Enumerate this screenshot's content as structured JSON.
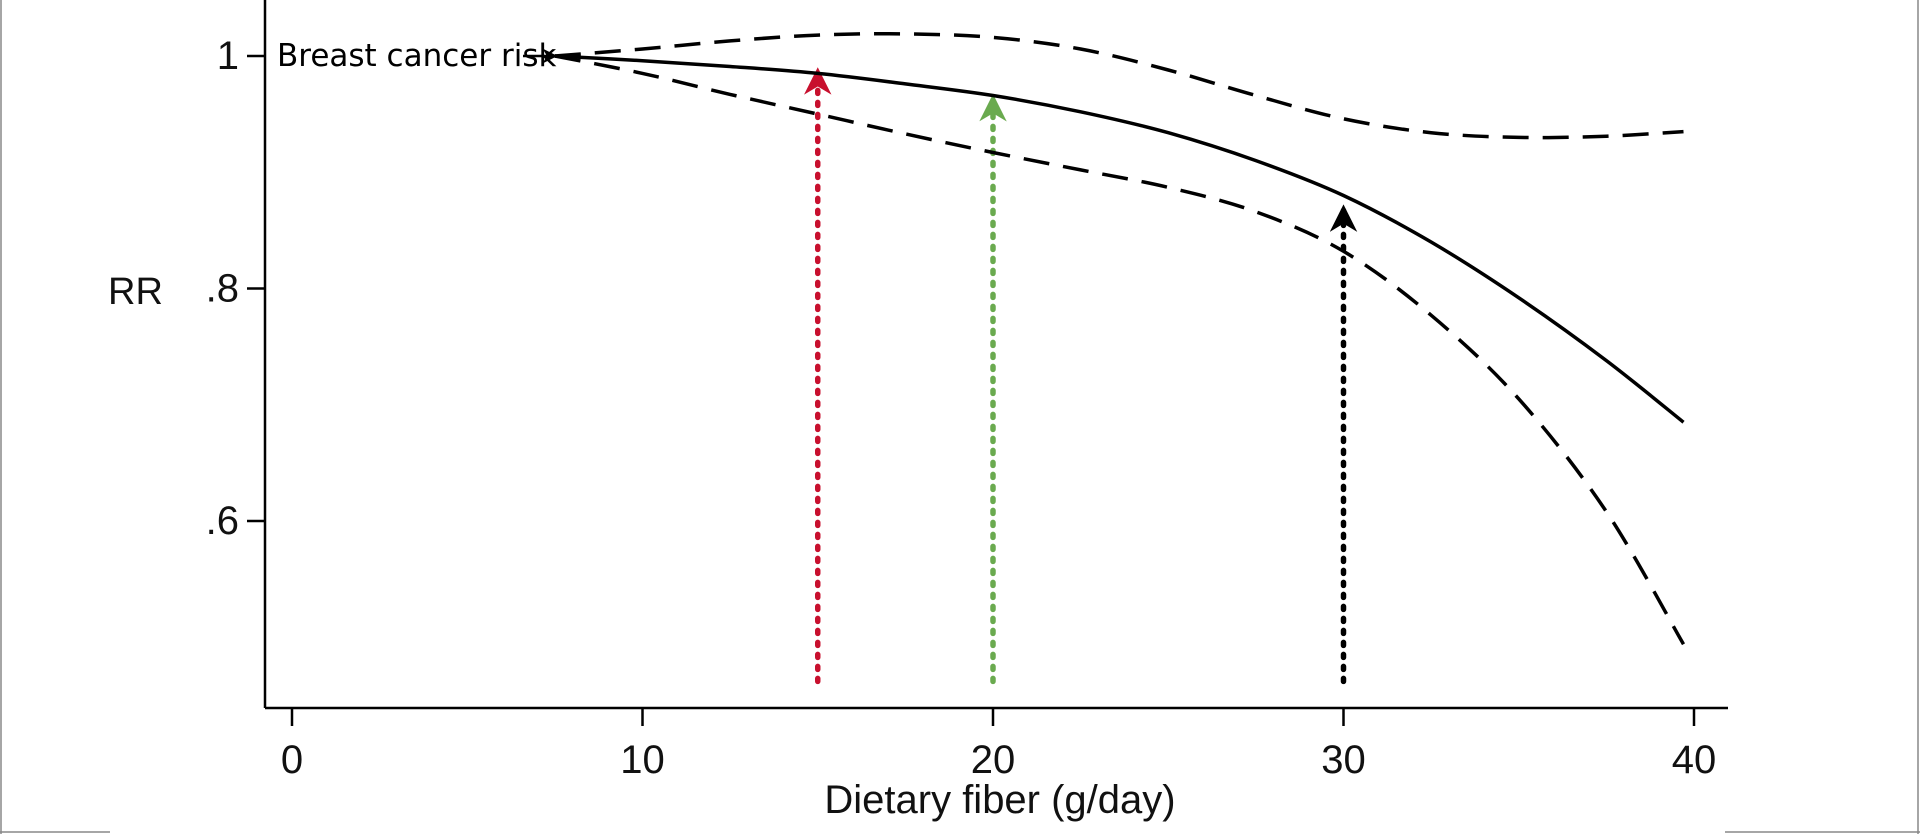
{
  "chart_data": {
    "type": "line",
    "title": "",
    "xlabel": "Dietary fiber (g/day)",
    "ylabel": "RR",
    "xlim": [
      -0.8,
      40.8
    ],
    "ylim": [
      0.46,
      1.04
    ],
    "x_ticks": [
      {
        "value": 0,
        "label": "0"
      },
      {
        "value": 10,
        "label": "10"
      },
      {
        "value": 20,
        "label": "20"
      },
      {
        "value": 30,
        "label": "30"
      },
      {
        "value": 40,
        "label": "40"
      }
    ],
    "y_ticks": [
      {
        "value": 1.0,
        "label": "1"
      },
      {
        "value": 0.8,
        "label": ".8"
      },
      {
        "value": 0.6,
        "label": ".6"
      }
    ],
    "grid": false,
    "series": [
      {
        "style": "solid",
        "color": "#000000",
        "x": [
          7.5,
          10,
          12.5,
          15,
          17.5,
          20,
          22.5,
          25,
          27.5,
          30,
          32.5,
          35,
          37.5,
          39.7
        ],
        "y": [
          1.0,
          0.996,
          0.991,
          0.985,
          0.976,
          0.966,
          0.952,
          0.934,
          0.91,
          0.88,
          0.84,
          0.792,
          0.738,
          0.685
        ]
      },
      {
        "style": "dashed",
        "color": "#000000",
        "x": [
          7.5,
          10,
          12.5,
          15,
          17.5,
          20,
          22.5,
          25,
          27.5,
          30,
          32.5,
          35,
          37.5,
          39.7
        ],
        "y": [
          1.0,
          1.006,
          1.013,
          1.018,
          1.019,
          1.016,
          1.006,
          0.988,
          0.966,
          0.946,
          0.934,
          0.93,
          0.931,
          0.935
        ]
      },
      {
        "style": "dashed",
        "color": "#000000",
        "x": [
          7.5,
          10,
          12.5,
          15,
          17.5,
          20,
          22.5,
          25,
          27.5,
          30,
          32.5,
          35,
          37.5,
          39.7
        ],
        "y": [
          1.0,
          0.985,
          0.967,
          0.95,
          0.933,
          0.917,
          0.902,
          0.887,
          0.866,
          0.832,
          0.777,
          0.705,
          0.608,
          0.494
        ]
      }
    ],
    "reference_arrows": [
      {
        "x": 15,
        "y_from": 0.462,
        "y_to": 0.988,
        "color": "#c8102e"
      },
      {
        "x": 20,
        "y_from": 0.462,
        "y_to": 0.965,
        "color": "#6aaa4f"
      },
      {
        "x": 30,
        "y_from": 0.462,
        "y_to": 0.87,
        "color": "#000000"
      }
    ],
    "annotations": [
      {
        "text": "Breast cancer risk",
        "target_x": 7.5,
        "target_y": 1.0
      }
    ]
  }
}
